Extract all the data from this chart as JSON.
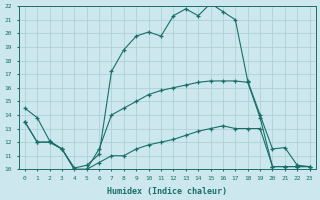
{
  "xlabel": "Humidex (Indice chaleur)",
  "bg_color": "#cce8ee",
  "grid_color": "#aaccd4",
  "line_color": "#1a6e6a",
  "xlim": [
    -0.5,
    23.5
  ],
  "ylim": [
    10,
    22
  ],
  "xticks": [
    0,
    1,
    2,
    3,
    4,
    5,
    6,
    7,
    8,
    9,
    10,
    11,
    12,
    13,
    14,
    15,
    16,
    17,
    18,
    19,
    20,
    21,
    22,
    23
  ],
  "yticks": [
    10,
    11,
    12,
    13,
    14,
    15,
    16,
    17,
    18,
    19,
    20,
    21,
    22
  ],
  "series1_x": [
    0,
    1,
    2,
    3,
    4,
    5,
    6,
    7,
    8,
    9,
    10,
    11,
    12,
    13,
    14,
    15,
    16,
    17,
    18,
    19,
    20,
    21,
    22,
    23
  ],
  "series1_y": [
    14.5,
    13.8,
    12.1,
    11.5,
    10.1,
    10.3,
    11.1,
    17.2,
    18.8,
    19.8,
    20.1,
    19.8,
    21.3,
    21.8,
    21.3,
    22.2,
    21.6,
    21.0,
    16.5,
    14.0,
    11.5,
    11.6,
    10.3,
    10.2
  ],
  "series2_x": [
    0,
    1,
    2,
    3,
    4,
    5,
    6,
    7,
    8,
    9,
    10,
    11,
    12,
    13,
    14,
    15,
    16,
    17,
    18,
    19,
    20,
    21,
    22,
    23
  ],
  "series2_y": [
    13.5,
    12.0,
    12.0,
    11.5,
    10.0,
    10.0,
    11.5,
    14.0,
    14.5,
    15.0,
    15.5,
    15.8,
    16.0,
    16.2,
    16.4,
    16.5,
    16.5,
    16.5,
    16.4,
    13.8,
    10.2,
    10.2,
    10.2,
    10.2
  ],
  "series3_x": [
    0,
    1,
    2,
    3,
    4,
    5,
    6,
    7,
    8,
    9,
    10,
    11,
    12,
    13,
    14,
    15,
    16,
    17,
    18,
    19,
    20,
    21,
    22,
    23
  ],
  "series3_y": [
    13.5,
    12.0,
    12.0,
    11.5,
    10.0,
    10.0,
    10.5,
    11.0,
    11.0,
    11.5,
    11.8,
    12.0,
    12.2,
    12.5,
    12.8,
    13.0,
    13.2,
    13.0,
    13.0,
    13.0,
    10.2,
    10.2,
    10.2,
    10.2
  ]
}
